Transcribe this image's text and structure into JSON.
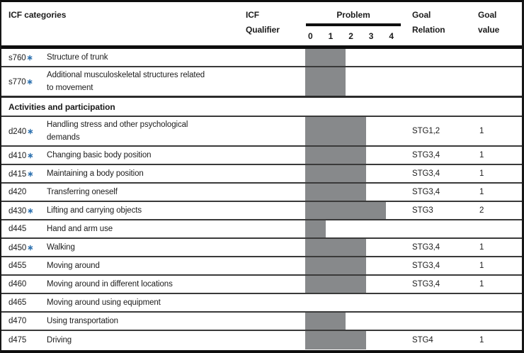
{
  "header": {
    "categories": "ICF categories",
    "qualifier": [
      "ICF",
      "Qualifier"
    ],
    "problem": "Problem",
    "scale": [
      "0",
      "1",
      "2",
      "3",
      "4"
    ],
    "goal_relation": [
      "Goal",
      "Relation"
    ],
    "goal_value": [
      "Goal",
      "value"
    ]
  },
  "marker": "∗",
  "colors": {
    "bar_fill": "#87898b",
    "marker_blue": "#2a6fae",
    "line_dark": "#0e0e0e"
  },
  "rows": [
    {
      "code": "s760",
      "starred": true,
      "label": "Structure of trunk",
      "problem_level": 1,
      "goal_relation": "",
      "goal_value": ""
    },
    {
      "code": "s770",
      "starred": true,
      "label": "Additional musculoskeletal structures related\nto movement",
      "problem_level": 1,
      "goal_relation": "",
      "goal_value": ""
    },
    {
      "type": "section",
      "label": "Activities and participation"
    },
    {
      "code": "d240",
      "starred": true,
      "label": "Handling stress and other psychological\ndemands",
      "problem_level": 2,
      "goal_relation": "STG1,2",
      "goal_value": "1"
    },
    {
      "code": "d410",
      "starred": true,
      "label": "Changing basic body position",
      "problem_level": 2,
      "goal_relation": "STG3,4",
      "goal_value": "1"
    },
    {
      "code": "d415",
      "starred": true,
      "label": "Maintaining a body position",
      "problem_level": 2,
      "goal_relation": "STG3,4",
      "goal_value": "1"
    },
    {
      "code": "d420",
      "starred": false,
      "label": "Transferring oneself",
      "problem_level": 2,
      "goal_relation": "STG3,4",
      "goal_value": "1"
    },
    {
      "code": "d430",
      "starred": true,
      "label": "Lifting and carrying objects",
      "problem_level": 3,
      "goal_relation": "STG3",
      "goal_value": "2"
    },
    {
      "code": "d445",
      "starred": false,
      "label": "Hand and arm use",
      "problem_level": 0,
      "goal_relation": "",
      "goal_value": ""
    },
    {
      "code": "d450",
      "starred": true,
      "label": "Walking",
      "problem_level": 2,
      "goal_relation": "STG3,4",
      "goal_value": "1"
    },
    {
      "code": "d455",
      "starred": false,
      "label": "Moving around",
      "problem_level": 2,
      "goal_relation": "STG3,4",
      "goal_value": "1"
    },
    {
      "code": "d460",
      "starred": false,
      "label": "Moving around in different locations",
      "problem_level": 2,
      "goal_relation": "STG3,4",
      "goal_value": "1"
    },
    {
      "code": "d465",
      "starred": false,
      "label": "Moving around using equipment",
      "problem_level": null,
      "goal_relation": "",
      "goal_value": ""
    },
    {
      "code": "d470",
      "starred": false,
      "label": "Using transportation",
      "problem_level": 1,
      "goal_relation": "",
      "goal_value": ""
    },
    {
      "code": "d475",
      "starred": false,
      "label": "Driving",
      "problem_level": 2,
      "goal_relation": "STG4",
      "goal_value": "1"
    }
  ]
}
